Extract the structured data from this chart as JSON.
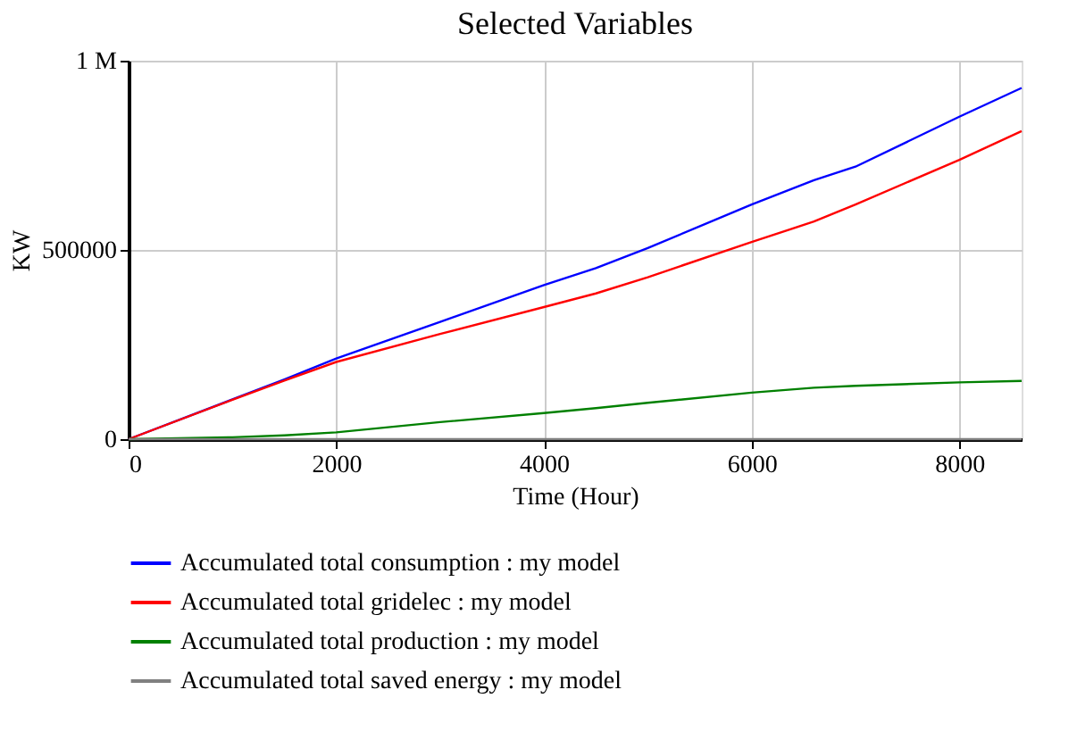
{
  "chart_data": {
    "type": "line",
    "title": "Selected Variables",
    "xlabel": "Time (Hour)",
    "ylabel": "KW",
    "x": [
      0,
      1000,
      1500,
      2000,
      3000,
      4000,
      4500,
      5000,
      6000,
      6600,
      7000,
      8000,
      8600
    ],
    "series": [
      {
        "name": "Accumulated total consumption : my model",
        "color": "#0000ff",
        "values": [
          0,
          105000,
          158000,
          213000,
          310000,
          407000,
          452000,
          505000,
          620000,
          684000,
          720000,
          852000,
          928000
        ]
      },
      {
        "name": "Accumulated total gridelec : my model",
        "color": "#ff0000",
        "values": [
          0,
          104000,
          155000,
          204000,
          278000,
          349000,
          385000,
          428000,
          521000,
          575000,
          620000,
          738000,
          814000
        ]
      },
      {
        "name": "Accumulated total production : my model",
        "color": "#008000",
        "values": [
          0,
          5000,
          10000,
          18000,
          45000,
          69000,
          82000,
          96000,
          123000,
          136000,
          141000,
          150000,
          154000
        ]
      },
      {
        "name": "Accumulated total saved energy : my model",
        "color": "#808080",
        "values": [
          0,
          0,
          0,
          0,
          0,
          0,
          0,
          0,
          0,
          0,
          0,
          0,
          0
        ]
      }
    ],
    "xlim": [
      0,
      8600
    ],
    "ylim": [
      0,
      1000000
    ],
    "xticks": [
      0,
      2000,
      4000,
      6000,
      8000
    ],
    "yticks": [
      0,
      500000,
      {
        "value": 1000000,
        "label": "1 M"
      }
    ],
    "grid": true,
    "legend": "bottom",
    "line_style": "solid",
    "marker": "none"
  }
}
